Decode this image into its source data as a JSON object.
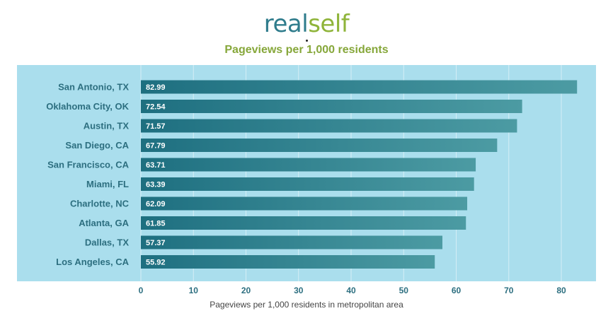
{
  "logo": {
    "part1": "real",
    "part2": "self"
  },
  "colors": {
    "logo_primary": "#2f7c8c",
    "logo_secondary": "#8fb43a",
    "title": "#86a73a",
    "plot_background": "#aadeed",
    "bar_dark": "#1e6f80",
    "bar_light": "#4c9ba3",
    "category_label": "#2d6f80",
    "tick_label": "#2d6f80"
  },
  "chart_data": {
    "type": "bar",
    "orientation": "horizontal",
    "title": "Pageviews per 1,000 residents",
    "xlabel": "Pageviews per 1,000 residents in metropolitan area",
    "ylabel": "",
    "categories": [
      "San Antonio, TX",
      "Oklahoma City, OK",
      "Austin, TX",
      "San Diego, CA",
      "San Francisco, CA",
      "Miami, FL",
      "Charlotte, NC",
      "Atlanta, GA",
      "Dallas, TX",
      "Los Angeles, CA"
    ],
    "values": [
      82.99,
      72.54,
      71.57,
      67.79,
      63.71,
      63.39,
      62.09,
      61.85,
      57.37,
      55.92
    ],
    "value_labels": [
      "82.99",
      "72.54",
      "71.57",
      "67.79",
      "63.71",
      "63.39",
      "62.09",
      "61.85",
      "57.37",
      "55.92"
    ],
    "xticks": [
      0,
      10,
      20,
      30,
      40,
      50,
      60,
      70,
      80
    ],
    "xlim": [
      0,
      83.5
    ],
    "grid": true
  }
}
